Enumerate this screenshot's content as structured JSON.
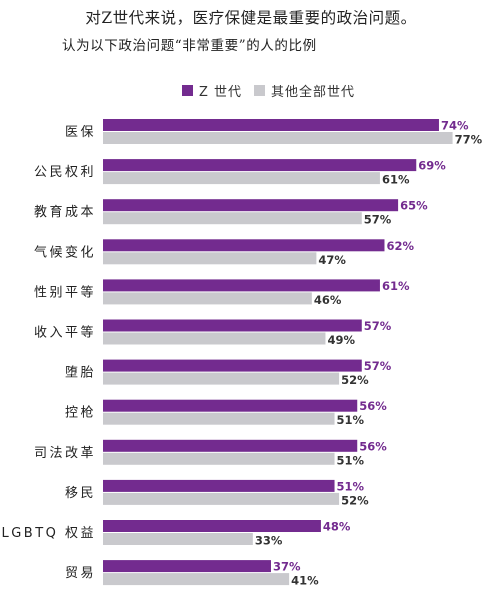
{
  "title": "对Z世代来说，医疗保健是最重要的政治问题。",
  "subtitle": "认为以下政治问题“非常重要”的人的比例",
  "colors": {
    "genz": "#732b8f",
    "others": "#c9c9cd",
    "genz_label": "#732b8f",
    "others_label": "#333333"
  },
  "chart_data": {
    "type": "bar",
    "orientation": "horizontal",
    "categories": [
      "医保",
      "公民权利",
      "教育成本",
      "气候变化",
      "性别平等",
      "收入平等",
      "堕胎",
      "控枪",
      "司法改革",
      "移民",
      "LGBTQ 权益",
      "贸易"
    ],
    "series": [
      {
        "name": "Z 世代",
        "values": [
          74,
          69,
          65,
          62,
          61,
          57,
          57,
          56,
          56,
          51,
          48,
          37
        ]
      },
      {
        "name": "其他全部世代",
        "values": [
          77,
          61,
          57,
          47,
          46,
          49,
          52,
          51,
          51,
          52,
          33,
          41
        ]
      }
    ],
    "value_suffix": "%",
    "legend_position": "top",
    "grid": false
  }
}
